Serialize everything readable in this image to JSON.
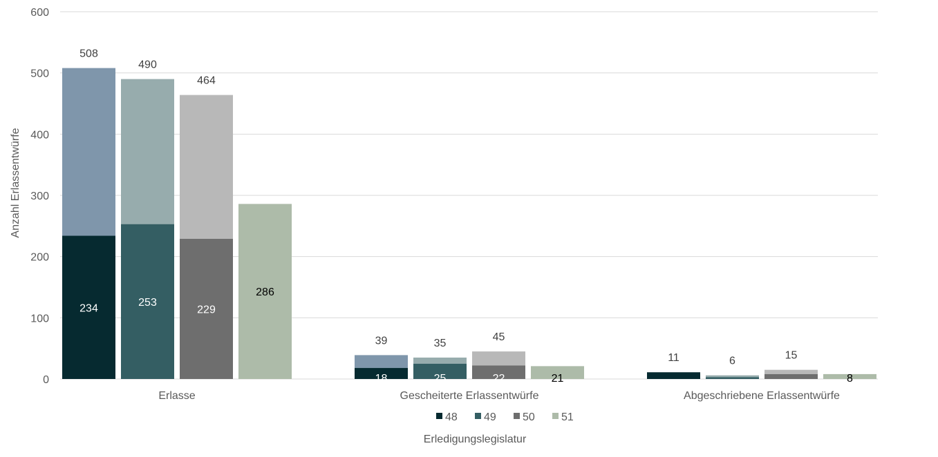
{
  "chart_data": {
    "type": "bar",
    "categories": [
      "Erlasse",
      "Gescheiterte Erlassentwürfe",
      "Abgeschriebene Erlassentwürfe"
    ],
    "series": [
      {
        "name": "48",
        "color": "#062a30",
        "top_color": "#7f96ab",
        "inner_label_color": "#ffffff",
        "inner_values": [
          234,
          18,
          11
        ],
        "totals": [
          508,
          39,
          11
        ]
      },
      {
        "name": "49",
        "color": "#345e63",
        "top_color": "#97acad",
        "inner_label_color": "#ffffff",
        "inner_values": [
          253,
          25,
          3
        ],
        "totals": [
          490,
          35,
          6
        ]
      },
      {
        "name": "50",
        "color": "#6e6e6e",
        "top_color": "#b8b8b8",
        "inner_label_color": "#ffffff",
        "inner_values": [
          229,
          22,
          8
        ],
        "totals": [
          464,
          45,
          15
        ]
      },
      {
        "name": "51",
        "color": "#adbba9",
        "top_color": "#adbba9",
        "inner_label_color": "#000000",
        "inner_values": [
          286,
          21,
          8
        ],
        "totals": [
          286,
          21,
          8
        ]
      }
    ],
    "inner_labels_shown": [
      [
        true,
        true,
        false
      ],
      [
        true,
        true,
        false
      ],
      [
        true,
        true,
        false
      ],
      [
        true,
        true,
        true
      ]
    ],
    "total_labels_shown": [
      [
        true,
        true,
        true
      ],
      [
        true,
        true,
        true
      ],
      [
        true,
        true,
        true
      ],
      [
        false,
        false,
        false
      ]
    ],
    "ylim": [
      0,
      600
    ],
    "yticks": [
      0,
      100,
      200,
      300,
      400,
      500,
      600
    ],
    "ylabel": "Anzahl Erlassentwürfe",
    "xlabel": "Erledigungslegislatur",
    "grid": true,
    "legend_position": "bottom"
  }
}
